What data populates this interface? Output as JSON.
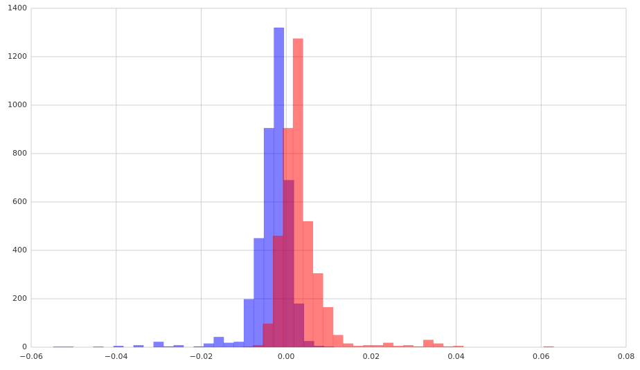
{
  "chart_data": {
    "type": "histogram",
    "series": [
      {
        "color": "#0000ff",
        "alpha": 0.5,
        "bins": [
          -0.0548,
          -0.05244,
          -0.05008,
          -0.04772,
          -0.04536,
          -0.043,
          -0.04064,
          -0.03828,
          -0.03592,
          -0.03356,
          -0.0312,
          -0.02884,
          -0.02648,
          -0.02412,
          -0.02176,
          -0.0194,
          -0.01704,
          -0.01468,
          -0.01232,
          -0.00996,
          -0.0076,
          -0.00524,
          -0.00288,
          -0.00052,
          0.00184,
          0.0042,
          0.00656,
          0.00892,
          0.01128
        ],
        "values": [
          2,
          2,
          0,
          0,
          2,
          0,
          5,
          0,
          8,
          0,
          22,
          3,
          8,
          0,
          3,
          15,
          42,
          18,
          22,
          198,
          450,
          905,
          1320,
          690,
          180,
          25,
          5,
          2
        ]
      },
      {
        "color": "#ff0000",
        "alpha": 0.5,
        "bins": [
          -0.0102,
          -0.00784,
          -0.00548,
          -0.00312,
          -0.00076,
          0.0016,
          0.00396,
          0.00632,
          0.00868,
          0.01104,
          0.0134,
          0.01576,
          0.01812,
          0.02048,
          0.02284,
          0.0252,
          0.02756,
          0.02992,
          0.03228,
          0.03464,
          0.037,
          0.03936,
          0.04172,
          0.04408,
          0.04644,
          0.0488,
          0.05116,
          0.05352,
          0.05588,
          0.05824,
          0.0606,
          0.06296
        ],
        "values": [
          2,
          8,
          97,
          460,
          905,
          1275,
          520,
          305,
          165,
          50,
          15,
          5,
          8,
          8,
          18,
          5,
          8,
          3,
          30,
          15,
          3,
          5,
          0,
          0,
          0,
          0,
          0,
          0,
          0,
          0,
          3
        ]
      }
    ],
    "xlim": [
      -0.06,
      0.08
    ],
    "xticks": [
      {
        "value": -0.06,
        "label": "−0.06"
      },
      {
        "value": -0.04,
        "label": "−0.04"
      },
      {
        "value": -0.02,
        "label": "−0.02"
      },
      {
        "value": 0,
        "label": "0.00"
      },
      {
        "value": 0.02,
        "label": "0.02"
      },
      {
        "value": 0.04,
        "label": "0.04"
      },
      {
        "value": 0.06,
        "label": "0.06"
      },
      {
        "value": 0.08,
        "label": "0.08"
      }
    ],
    "ylim": [
      0,
      1400
    ],
    "yticks": [
      0,
      200,
      400,
      600,
      800,
      1000,
      1200,
      1400
    ],
    "grid": true
  }
}
